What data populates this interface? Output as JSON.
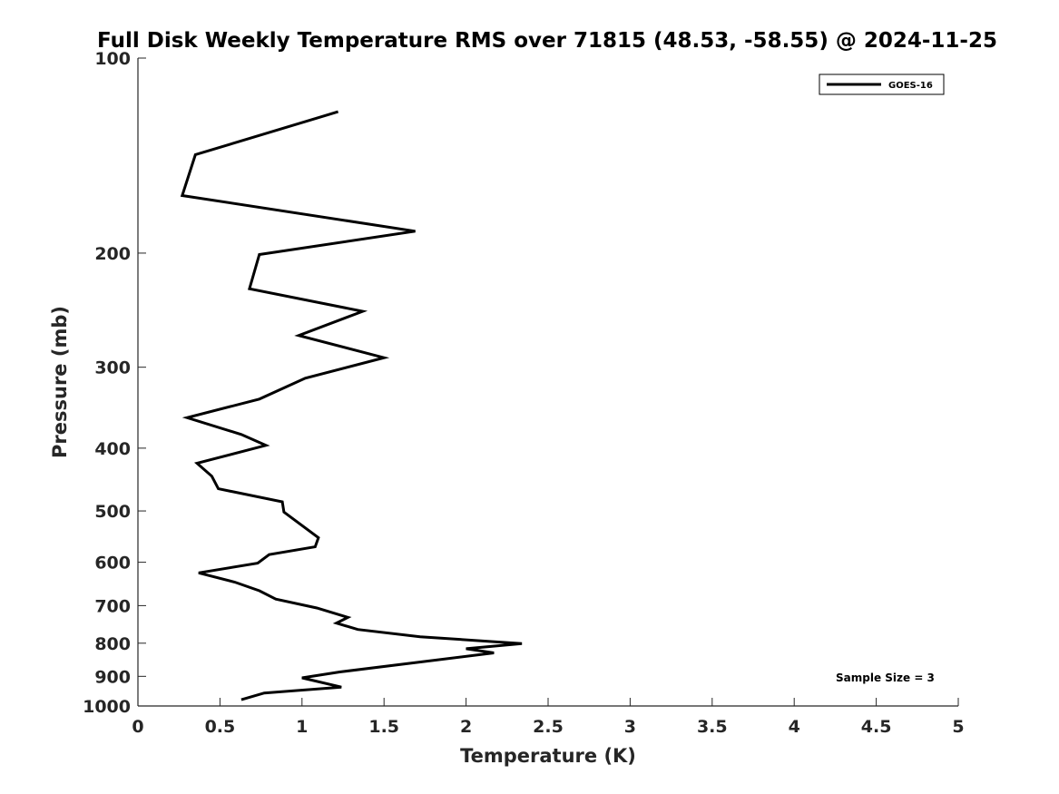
{
  "chart_data": {
    "type": "line",
    "title": "Full Disk Weekly Temperature RMS over 71815 (48.53, -58.55) @ 2024-11-25",
    "xlabel": "Temperature (K)",
    "ylabel": "Pressure (mb)",
    "xlim": [
      0,
      5
    ],
    "ylim": [
      100,
      1000
    ],
    "y_scale": "log",
    "y_reversed": true,
    "grid": false,
    "legend_position": "top-right",
    "xticks": [
      0,
      0.5,
      1,
      1.5,
      2,
      2.5,
      3,
      3.5,
      4,
      4.5,
      5
    ],
    "xtick_labels": [
      "0",
      "0.5",
      "1",
      "1.5",
      "2",
      "2.5",
      "3",
      "3.5",
      "4",
      "4.5",
      "5"
    ],
    "yticks": [
      100,
      200,
      300,
      400,
      500,
      600,
      700,
      800,
      900,
      1000
    ],
    "ytick_labels": [
      "100",
      "200",
      "300",
      "400",
      "500",
      "600",
      "700",
      "800",
      "900",
      "1000"
    ],
    "series": [
      {
        "name": "GOES-16",
        "color": "#000000",
        "points": [
          [
            1.22,
            121
          ],
          [
            0.35,
            141
          ],
          [
            0.27,
            163
          ],
          [
            1.69,
            185
          ],
          [
            0.74,
            201
          ],
          [
            0.68,
            227
          ],
          [
            1.37,
            246
          ],
          [
            0.98,
            268
          ],
          [
            1.5,
            290
          ],
          [
            1.02,
            312
          ],
          [
            0.74,
            336
          ],
          [
            0.3,
            359
          ],
          [
            0.63,
            381
          ],
          [
            0.78,
            396
          ],
          [
            0.36,
            422
          ],
          [
            0.45,
            442
          ],
          [
            0.49,
            462
          ],
          [
            0.88,
            484
          ],
          [
            0.89,
            502
          ],
          [
            1.1,
            550
          ],
          [
            1.08,
            568
          ],
          [
            0.8,
            584
          ],
          [
            0.73,
            602
          ],
          [
            0.37,
            623
          ],
          [
            0.59,
            644
          ],
          [
            0.74,
            664
          ],
          [
            0.84,
            684
          ],
          [
            1.09,
            706
          ],
          [
            1.28,
            730
          ],
          [
            1.21,
            745
          ],
          [
            1.34,
            762
          ],
          [
            1.72,
            782
          ],
          [
            2.34,
            801
          ],
          [
            2.0,
            816
          ],
          [
            2.17,
            828
          ],
          [
            1.23,
            886
          ],
          [
            1.0,
            905
          ],
          [
            1.24,
            935
          ],
          [
            0.77,
            955
          ],
          [
            0.63,
            978
          ]
        ]
      }
    ],
    "annotations": [
      "Sample Size = 3"
    ]
  }
}
